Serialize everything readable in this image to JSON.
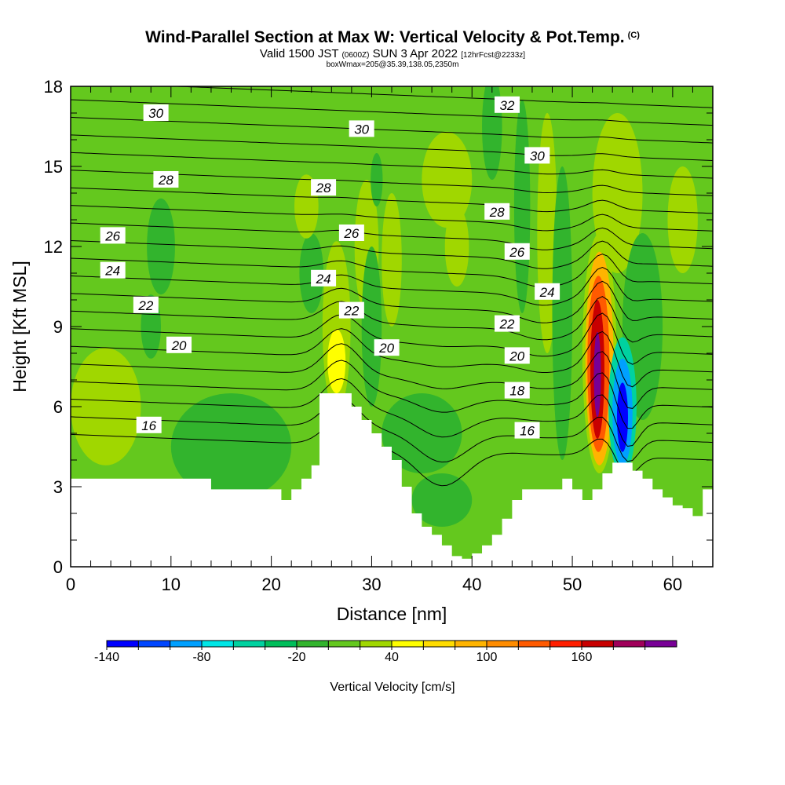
{
  "header": {
    "title": "Wind-Parallel Section at Max W: Vertical Velocity & Pot.Temp.",
    "copyright": "(C)",
    "valid_prefix": "Valid 1500 JST",
    "valid_z": "(0600Z)",
    "valid_date": "SUN 3 Apr 2022",
    "forecast": "[12hrFcst@2233z]",
    "boxwmax": "boxWmax=205@35.39,138.05,2350m"
  },
  "chart_data": {
    "type": "heatmap",
    "xlabel": "Distance [nm]",
    "ylabel": "Height [Kft MSL]",
    "xlim": [
      0,
      64
    ],
    "ylim": [
      0,
      18
    ],
    "xticks": [
      0,
      10,
      20,
      30,
      40,
      50,
      60
    ],
    "yticks": [
      0,
      3,
      6,
      9,
      12,
      15,
      18
    ],
    "background_level": 10,
    "colorbar": {
      "title": "Vertical Velocity [cm/s]",
      "levels": [
        -140,
        -120,
        -100,
        -80,
        -60,
        -40,
        -20,
        0,
        20,
        40,
        60,
        80,
        100,
        120,
        140,
        160,
        180,
        200
      ],
      "colors": [
        "#0000ff",
        "#0046ff",
        "#00a0ff",
        "#00e6e6",
        "#00d2a0",
        "#00be5a",
        "#32b42d",
        "#64c81e",
        "#a0d700",
        "#ffff00",
        "#ffdc00",
        "#ffb400",
        "#ff8c00",
        "#ff5a00",
        "#ff1e00",
        "#c80000",
        "#a0005a",
        "#780096"
      ],
      "tick_labels": [
        "-140",
        "-80",
        "-20",
        "40",
        "100",
        "160"
      ],
      "tick_values": [
        -140,
        -80,
        -20,
        40,
        100,
        160
      ]
    },
    "velocity_features": [
      {
        "x": 3.5,
        "y": 6.0,
        "rx": 3.5,
        "ry": 2.2,
        "value": 30
      },
      {
        "x": 9.0,
        "y": 12.0,
        "rx": 1.4,
        "ry": 1.8,
        "value": -10
      },
      {
        "x": 8.0,
        "y": 9.0,
        "rx": 1.0,
        "ry": 1.2,
        "value": -10
      },
      {
        "x": 16.0,
        "y": 4.5,
        "rx": 6.0,
        "ry": 2.0,
        "value": -10
      },
      {
        "x": 24.0,
        "y": 11.0,
        "rx": 1.2,
        "ry": 1.5,
        "value": -10
      },
      {
        "x": 23.5,
        "y": 13.5,
        "rx": 1.2,
        "ry": 1.2,
        "value": 30
      },
      {
        "x": 26.5,
        "y": 9.0,
        "rx": 1.4,
        "ry": 3.2,
        "value": 30
      },
      {
        "x": 26.5,
        "y": 7.7,
        "rx": 0.9,
        "ry": 1.2,
        "value": 50
      },
      {
        "x": 29.5,
        "y": 12.0,
        "rx": 1.2,
        "ry": 2.5,
        "value": 30
      },
      {
        "x": 30.0,
        "y": 9.0,
        "rx": 1.0,
        "ry": 3.0,
        "value": -10
      },
      {
        "x": 30.5,
        "y": 14.5,
        "rx": 0.6,
        "ry": 1.0,
        "value": -10
      },
      {
        "x": 32.0,
        "y": 11.5,
        "rx": 1.0,
        "ry": 2.5,
        "value": 30
      },
      {
        "x": 35.0,
        "y": 5.0,
        "rx": 4.0,
        "ry": 1.5,
        "value": -10
      },
      {
        "x": 37.0,
        "y": 2.5,
        "rx": 3.0,
        "ry": 1.0,
        "value": -10
      },
      {
        "x": 37.5,
        "y": 14.5,
        "rx": 2.5,
        "ry": 1.8,
        "value": 30
      },
      {
        "x": 38.5,
        "y": 12.0,
        "rx": 1.2,
        "ry": 1.5,
        "value": 30
      },
      {
        "x": 42.0,
        "y": 16.5,
        "rx": 1.0,
        "ry": 2.0,
        "value": -10
      },
      {
        "x": 45.0,
        "y": 13.5,
        "rx": 0.8,
        "ry": 4.0,
        "value": -10
      },
      {
        "x": 47.5,
        "y": 12.5,
        "rx": 1.0,
        "ry": 4.5,
        "value": 30
      },
      {
        "x": 49.0,
        "y": 9.5,
        "rx": 1.0,
        "ry": 5.5,
        "value": -10
      },
      {
        "x": 54.5,
        "y": 14.0,
        "rx": 2.5,
        "ry": 3.0,
        "value": 30
      },
      {
        "x": 61.0,
        "y": 13.0,
        "rx": 1.5,
        "ry": 2.0,
        "value": 30
      },
      {
        "x": 57.0,
        "y": 9.0,
        "rx": 2.0,
        "ry": 3.5,
        "value": -10
      },
      {
        "x": 52.7,
        "y": 8.0,
        "rx": 1.7,
        "ry": 4.5,
        "value": 30
      },
      {
        "x": 52.7,
        "y": 7.8,
        "rx": 1.4,
        "ry": 4.0,
        "value": 90
      },
      {
        "x": 52.6,
        "y": 7.6,
        "rx": 1.1,
        "ry": 3.3,
        "value": 130
      },
      {
        "x": 52.5,
        "y": 7.4,
        "rx": 0.7,
        "ry": 2.6,
        "value": 170
      },
      {
        "x": 52.5,
        "y": 7.2,
        "rx": 0.35,
        "ry": 1.6,
        "value": 200
      },
      {
        "x": 55.0,
        "y": 6.0,
        "rx": 1.4,
        "ry": 2.6,
        "value": -50
      },
      {
        "x": 55.0,
        "y": 5.8,
        "rx": 1.0,
        "ry": 2.0,
        "value": -90
      },
      {
        "x": 55.0,
        "y": 5.6,
        "rx": 0.55,
        "ry": 1.3,
        "value": -130
      }
    ],
    "terrain": {
      "x": [
        0,
        13,
        14,
        20,
        21,
        22,
        23,
        24,
        24.8,
        27,
        28,
        29,
        30,
        31,
        32,
        33,
        34,
        35,
        36,
        37,
        38,
        39,
        40,
        41,
        42,
        43,
        44,
        45,
        48,
        49,
        50,
        51,
        52,
        53,
        54,
        55,
        56,
        57,
        58,
        59,
        60,
        61,
        62,
        63,
        64
      ],
      "height": [
        3.3,
        3.3,
        2.9,
        2.9,
        2.5,
        2.9,
        3.3,
        3.8,
        6.5,
        6.5,
        6.0,
        5.5,
        5.0,
        4.5,
        4.0,
        3.0,
        2.0,
        1.5,
        1.2,
        0.8,
        0.4,
        0.3,
        0.5,
        0.8,
        1.2,
        1.8,
        2.5,
        2.9,
        2.9,
        3.3,
        2.9,
        2.5,
        2.9,
        3.5,
        3.9,
        3.9,
        3.6,
        3.3,
        2.9,
        2.6,
        2.3,
        2.2,
        1.9,
        2.9,
        2.9
      ]
    },
    "isentropes": {
      "levels": [
        14,
        15,
        16,
        17,
        18,
        19,
        20,
        21,
        22,
        23,
        24,
        25,
        26,
        27,
        28,
        29,
        30,
        31,
        32,
        33,
        34
      ],
      "base_height": 4.0,
      "spacing": 0.66,
      "left_tilt": 0.05,
      "deflections": [
        {
          "x": 27.0,
          "dy": 1.2,
          "sx": 2.5,
          "sy": 4.0,
          "yc": 6.5
        },
        {
          "x": 37.0,
          "dy": -1.5,
          "sx": 3.5,
          "sy": 3.0,
          "yc": 3.5
        },
        {
          "x": 47.0,
          "dy": -0.4,
          "sx": 3.0,
          "sy": 4.0,
          "yc": 10.0
        },
        {
          "x": 53.0,
          "dy": 1.4,
          "sx": 1.8,
          "sy": 4.5,
          "yc": 8.0
        },
        {
          "x": 55.5,
          "dy": -1.1,
          "sx": 1.5,
          "sy": 3.0,
          "yc": 6.0
        }
      ]
    },
    "contour_labels": [
      {
        "text": "30",
        "x": 8.5,
        "y": 17.0
      },
      {
        "text": "28",
        "x": 9.5,
        "y": 14.5
      },
      {
        "text": "26",
        "x": 4.2,
        "y": 12.4
      },
      {
        "text": "24",
        "x": 4.2,
        "y": 11.1
      },
      {
        "text": "22",
        "x": 7.5,
        "y": 9.8
      },
      {
        "text": "20",
        "x": 10.8,
        "y": 8.3
      },
      {
        "text": "16",
        "x": 7.8,
        "y": 5.3
      },
      {
        "text": "30",
        "x": 29.0,
        "y": 16.4
      },
      {
        "text": "28",
        "x": 25.2,
        "y": 14.2
      },
      {
        "text": "26",
        "x": 28.0,
        "y": 12.5
      },
      {
        "text": "24",
        "x": 25.2,
        "y": 10.8
      },
      {
        "text": "22",
        "x": 28.0,
        "y": 9.6
      },
      {
        "text": "20",
        "x": 31.5,
        "y": 8.2
      },
      {
        "text": "32",
        "x": 43.5,
        "y": 17.3
      },
      {
        "text": "30",
        "x": 46.5,
        "y": 15.4
      },
      {
        "text": "28",
        "x": 42.5,
        "y": 13.3
      },
      {
        "text": "26",
        "x": 44.5,
        "y": 11.8
      },
      {
        "text": "24",
        "x": 47.5,
        "y": 10.3
      },
      {
        "text": "22",
        "x": 43.5,
        "y": 9.1
      },
      {
        "text": "20",
        "x": 44.5,
        "y": 7.9
      },
      {
        "text": "18",
        "x": 44.5,
        "y": 6.6
      },
      {
        "text": "16",
        "x": 45.5,
        "y": 5.1
      }
    ]
  }
}
